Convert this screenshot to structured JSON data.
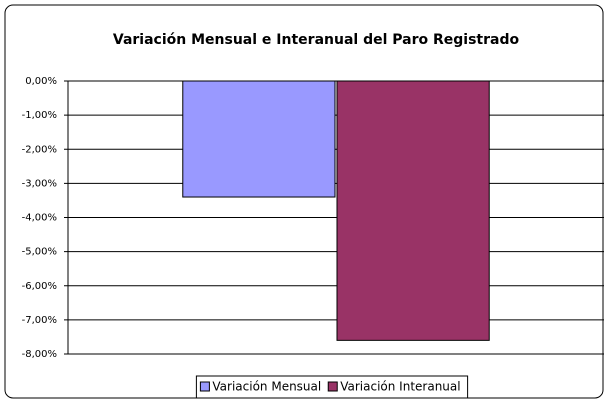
{
  "chart_data": {
    "type": "bar",
    "title": "Variación Mensual e Interanual del Paro Registrado",
    "categories": [
      null
    ],
    "series": [
      {
        "name": "Variación Mensual",
        "color": "#9999ff",
        "values": [
          -3.4
        ]
      },
      {
        "name": "Variación Interanual",
        "color": "#993366",
        "values": [
          -7.6
        ]
      }
    ],
    "ylim": [
      -8,
      0
    ],
    "yticks": [
      {
        "value": 0,
        "label": "0,00%"
      },
      {
        "value": -1,
        "label": "-1,00%"
      },
      {
        "value": -2,
        "label": "-2,00%"
      },
      {
        "value": -3,
        "label": "-3,00%"
      },
      {
        "value": -4,
        "label": "-4,00%"
      },
      {
        "value": -5,
        "label": "-5,00%"
      },
      {
        "value": -6,
        "label": "-6,00%"
      },
      {
        "value": -7,
        "label": "-7,00%"
      },
      {
        "value": -8,
        "label": "-8,00%"
      }
    ],
    "grid": true,
    "legend": "bottom"
  }
}
